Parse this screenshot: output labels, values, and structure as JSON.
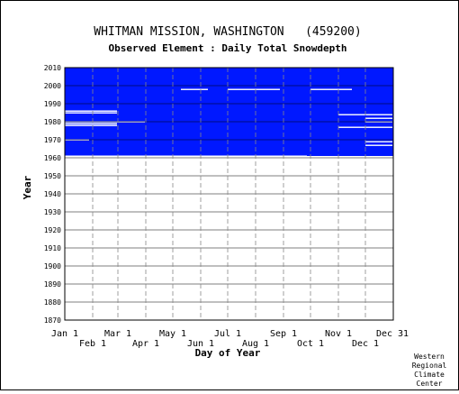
{
  "chart_data": {
    "type": "heatmap",
    "title": "WHITMAN MISSION, WASHINGTON   (459200)",
    "subtitle": "Observed Element : Daily Total Snowdepth",
    "xlabel": "Day of Year",
    "ylabel": "Year",
    "x_ticks_top": [
      "Jan 1",
      "Mar 1",
      "May 1",
      "Jul 1",
      "Sep 1",
      "Nov 1",
      "Dec 31"
    ],
    "x_ticks_bottom": [
      "Feb 1",
      "Apr 1",
      "Jun 1",
      "Aug 1",
      "Oct 1",
      "Dec 1"
    ],
    "y_ticks": [
      1870,
      1880,
      1890,
      1900,
      1910,
      1920,
      1930,
      1940,
      1950,
      1960,
      1970,
      1980,
      1990,
      2000,
      2010
    ],
    "ylim": [
      1870,
      2010
    ],
    "xlim": [
      1,
      365
    ],
    "grid": true,
    "data_color": "#0018ff",
    "record_start_year": 1961,
    "record_end_year": 2010,
    "missing_stretches": [
      {
        "year": 1998,
        "start_day": 130,
        "end_day": 160
      },
      {
        "year": 1998,
        "start_day": 182,
        "end_day": 240
      },
      {
        "year": 1998,
        "start_day": 274,
        "end_day": 320
      },
      {
        "year": 1986,
        "start_day": 1,
        "end_day": 59
      },
      {
        "year": 1985,
        "start_day": 1,
        "end_day": 59
      },
      {
        "year": 1980,
        "start_day": 1,
        "end_day": 90
      },
      {
        "year": 1979,
        "start_day": 1,
        "end_day": 59
      },
      {
        "year": 1978,
        "start_day": 1,
        "end_day": 59
      },
      {
        "year": 1970,
        "start_day": 1,
        "end_day": 28
      },
      {
        "year": 1984,
        "start_day": 305,
        "end_day": 365
      },
      {
        "year": 1982,
        "start_day": 335,
        "end_day": 365
      },
      {
        "year": 1980,
        "start_day": 335,
        "end_day": 365
      },
      {
        "year": 1977,
        "start_day": 305,
        "end_day": 365
      },
      {
        "year": 1969,
        "start_day": 335,
        "end_day": 365
      },
      {
        "year": 1967,
        "start_day": 335,
        "end_day": 365
      },
      {
        "year": 1961,
        "start_day": 1,
        "end_day": 270
      }
    ],
    "credit": [
      "Western",
      "Regional",
      "Climate",
      "Center"
    ]
  }
}
